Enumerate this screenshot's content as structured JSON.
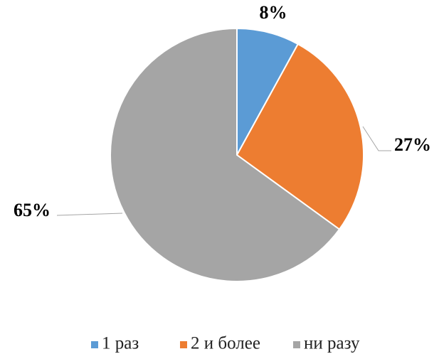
{
  "chart_data": {
    "type": "pie",
    "categories": [
      "1 раз",
      "2 и более",
      "ни разу"
    ],
    "values": [
      8,
      27,
      65
    ],
    "value_labels": [
      "8%",
      "27%",
      "65%"
    ],
    "colors": [
      "#5b9bd5",
      "#ed7d31",
      "#a5a5a5"
    ],
    "legend": "bottom"
  }
}
